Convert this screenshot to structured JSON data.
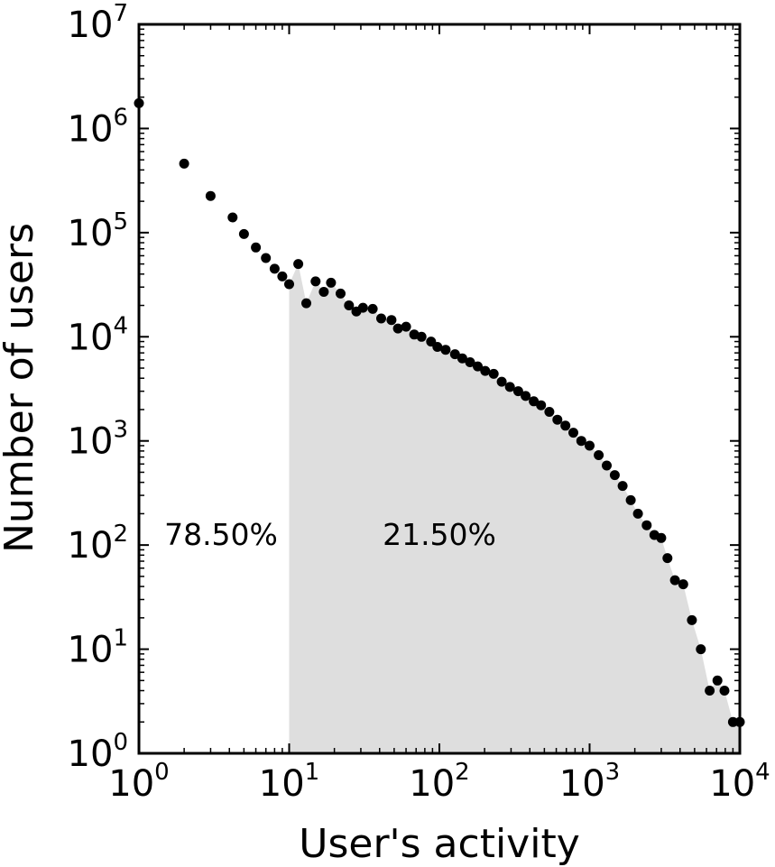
{
  "chart_data": {
    "type": "scatter",
    "x_scale": "log",
    "y_scale": "log",
    "xlabel": "User's activity",
    "ylabel": "Number of users",
    "xlim": [
      1,
      10000
    ],
    "ylim": [
      1,
      10000000
    ],
    "x_ticks": [
      {
        "base": "10",
        "exp": "0"
      },
      {
        "base": "10",
        "exp": "1"
      },
      {
        "base": "10",
        "exp": "2"
      },
      {
        "base": "10",
        "exp": "3"
      },
      {
        "base": "10",
        "exp": "4"
      }
    ],
    "y_ticks": [
      {
        "base": "10",
        "exp": "0"
      },
      {
        "base": "10",
        "exp": "1"
      },
      {
        "base": "10",
        "exp": "2"
      },
      {
        "base": "10",
        "exp": "3"
      },
      {
        "base": "10",
        "exp": "4"
      },
      {
        "base": "10",
        "exp": "5"
      },
      {
        "base": "10",
        "exp": "6"
      },
      {
        "base": "10",
        "exp": "7"
      }
    ],
    "shaded_from_x": 10,
    "shade_color": "#dedede",
    "marker_color": "#000000",
    "annotations": {
      "left_share": "78.50%",
      "right_share": "21.50%"
    },
    "points": [
      [
        1,
        1750000
      ],
      [
        2,
        460000
      ],
      [
        3,
        225000
      ],
      [
        4.2,
        140000
      ],
      [
        5,
        97000
      ],
      [
        6,
        72000
      ],
      [
        7,
        57000
      ],
      [
        8,
        45000
      ],
      [
        9,
        38000
      ],
      [
        10,
        32000
      ],
      [
        11.5,
        50000
      ],
      [
        13,
        21000
      ],
      [
        15,
        34000
      ],
      [
        17,
        27000
      ],
      [
        19,
        33000
      ],
      [
        22,
        26000
      ],
      [
        25,
        20000
      ],
      [
        28,
        17500
      ],
      [
        31,
        19000
      ],
      [
        36,
        18500
      ],
      [
        41,
        15000
      ],
      [
        48,
        14500
      ],
      [
        53,
        12000
      ],
      [
        60,
        12500
      ],
      [
        68,
        10500
      ],
      [
        76,
        10000
      ],
      [
        88,
        9000
      ],
      [
        97,
        8000
      ],
      [
        110,
        7500
      ],
      [
        127,
        6800
      ],
      [
        142,
        6200
      ],
      [
        160,
        5700
      ],
      [
        180,
        5200
      ],
      [
        202,
        4700
      ],
      [
        230,
        4400
      ],
      [
        260,
        3700
      ],
      [
        295,
        3300
      ],
      [
        335,
        3000
      ],
      [
        375,
        2700
      ],
      [
        425,
        2400
      ],
      [
        475,
        2200
      ],
      [
        540,
        1900
      ],
      [
        610,
        1600
      ],
      [
        690,
        1400
      ],
      [
        780,
        1200
      ],
      [
        880,
        1000
      ],
      [
        1000,
        900
      ],
      [
        1150,
        730
      ],
      [
        1300,
        580
      ],
      [
        1470,
        470
      ],
      [
        1660,
        370
      ],
      [
        1880,
        270
      ],
      [
        2100,
        200
      ],
      [
        2400,
        155
      ],
      [
        2700,
        125
      ],
      [
        3000,
        117
      ],
      [
        3300,
        75
      ],
      [
        3700,
        46
      ],
      [
        4200,
        42
      ],
      [
        4800,
        19
      ],
      [
        5500,
        10
      ],
      [
        6300,
        4
      ],
      [
        7100,
        5
      ],
      [
        7900,
        4
      ],
      [
        9000,
        2
      ],
      [
        10000,
        2
      ]
    ]
  }
}
